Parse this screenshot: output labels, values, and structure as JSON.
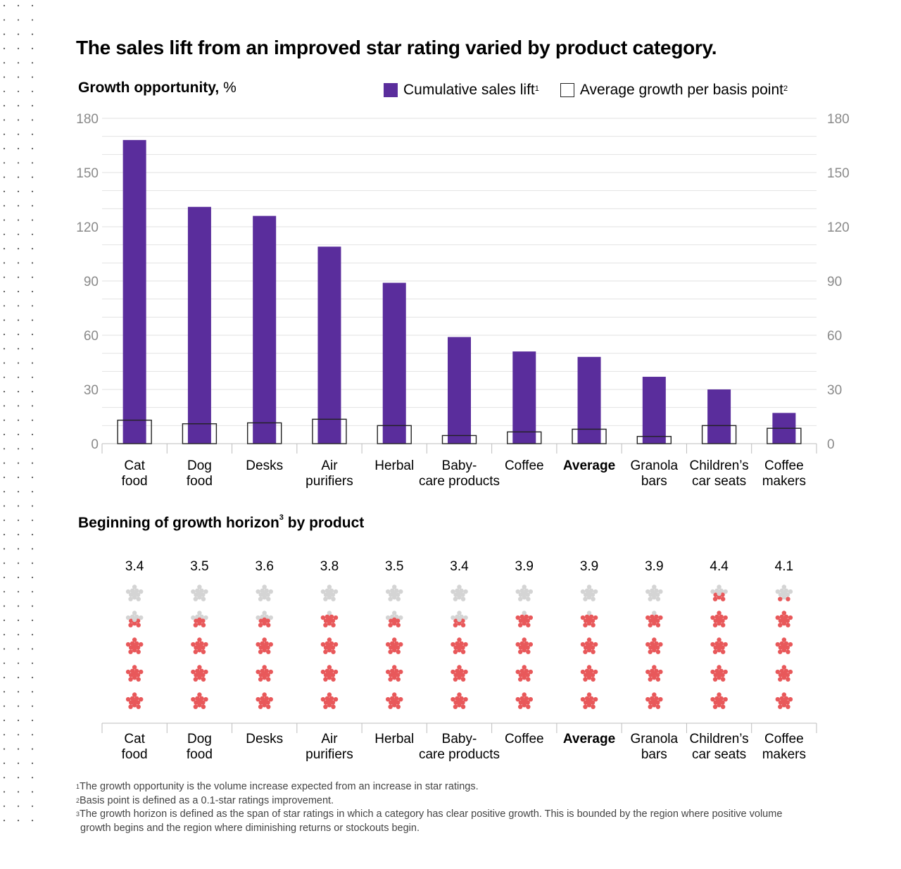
{
  "title": "The sales lift from an improved star rating varied by product category.",
  "top_chart": {
    "heading": "Growth opportunity,",
    "heading_unit": "%"
  },
  "legend": [
    {
      "label": "Cumulative sales lift",
      "sup": "1",
      "color": "#5a2d9c",
      "style": "filled"
    },
    {
      "label": "Average growth per basis point",
      "sup": "2",
      "color": "#222222",
      "style": "outline"
    }
  ],
  "bottom_chart": {
    "heading": "Beginning of growth horizon",
    "heading_sup": "3",
    "heading_suffix": " by product"
  },
  "footnotes": [
    {
      "sup": "1",
      "text": "The growth opportunity is the volume increase expected from an increase in star ratings."
    },
    {
      "sup": "2",
      "text": "Basis point is defined as a 0.1-star ratings improvement."
    },
    {
      "sup": "3",
      "text": "The growth horizon is defined as the span of star ratings in which a category has clear positive growth. This is bounded by the region where positive volume",
      "cont": "growth begins and the region where diminishing returns or stockouts begin."
    }
  ],
  "chart_data": [
    {
      "type": "bar",
      "categories": [
        {
          "lines": [
            "Cat",
            "food"
          ],
          "bold": false
        },
        {
          "lines": [
            "Dog",
            "food"
          ],
          "bold": false
        },
        {
          "lines": [
            "Desks"
          ],
          "bold": false
        },
        {
          "lines": [
            "Air",
            "purifiers"
          ],
          "bold": false
        },
        {
          "lines": [
            "Herbal"
          ],
          "bold": false
        },
        {
          "lines": [
            "Baby-",
            "care products"
          ],
          "bold": false
        },
        {
          "lines": [
            "Coffee"
          ],
          "bold": false
        },
        {
          "lines": [
            "Average"
          ],
          "bold": true
        },
        {
          "lines": [
            "Granola",
            "bars"
          ],
          "bold": false
        },
        {
          "lines": [
            "Children’s",
            "car seats"
          ],
          "bold": false
        },
        {
          "lines": [
            "Coffee",
            "makers"
          ],
          "bold": false
        }
      ],
      "series": [
        {
          "name": "Cumulative sales lift",
          "values": [
            168,
            131,
            126,
            109,
            89,
            59,
            51,
            48,
            37,
            30,
            17
          ]
        },
        {
          "name": "Average growth per basis point",
          "values": [
            13,
            11,
            11.5,
            13.5,
            10,
            4.5,
            6.5,
            8,
            4,
            10,
            8.5
          ]
        }
      ],
      "yticks": [
        0,
        30,
        60,
        90,
        120,
        150,
        180
      ],
      "ylim": [
        0,
        180
      ],
      "grid": true
    },
    {
      "type": "star-rating",
      "categories": [
        {
          "lines": [
            "Cat",
            "food"
          ],
          "bold": false
        },
        {
          "lines": [
            "Dog",
            "food"
          ],
          "bold": false
        },
        {
          "lines": [
            "Desks"
          ],
          "bold": false
        },
        {
          "lines": [
            "Air",
            "purifiers"
          ],
          "bold": false
        },
        {
          "lines": [
            "Herbal"
          ],
          "bold": false
        },
        {
          "lines": [
            "Baby-",
            "care products"
          ],
          "bold": false
        },
        {
          "lines": [
            "Coffee"
          ],
          "bold": false
        },
        {
          "lines": [
            "Average"
          ],
          "bold": true
        },
        {
          "lines": [
            "Granola",
            "bars"
          ],
          "bold": false
        },
        {
          "lines": [
            "Children’s",
            "car seats"
          ],
          "bold": false
        },
        {
          "lines": [
            "Coffee",
            "makers"
          ],
          "bold": false
        }
      ],
      "values": [
        3.4,
        3.5,
        3.6,
        3.8,
        3.5,
        3.4,
        3.9,
        3.9,
        3.9,
        4.4,
        4.1
      ],
      "max_stars": 5,
      "filled_color": "#e8585a",
      "empty_color": "#d4d4d4"
    }
  ],
  "colors": {
    "bar": "#5a2d9c",
    "outline": "#222222",
    "grid": "#e2e2e2",
    "axis_text": "#8a8a8a"
  }
}
